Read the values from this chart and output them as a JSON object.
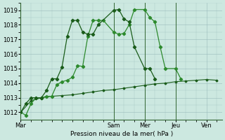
{
  "background_color": "#cce8e0",
  "grid_color": "#99bbbb",
  "line_color_dark": "#1a5c1a",
  "line_color_medium": "#2d8a2d",
  "x_ticks_labels": [
    "Mar",
    "Sam",
    "Mer",
    "Jeu",
    "Ven"
  ],
  "x_ticks_pos": [
    0,
    36,
    48,
    60,
    72
  ],
  "ylabel": "Pression niveau de la mer( hPa )",
  "ylim": [
    1011.5,
    1019.5
  ],
  "yticks": [
    1012,
    1013,
    1014,
    1015,
    1016,
    1017,
    1018,
    1019
  ],
  "xlim": [
    0,
    78
  ],
  "vlines_x": [
    36,
    48,
    60
  ],
  "series1_x": [
    0,
    2,
    4,
    6,
    8,
    10,
    12,
    14,
    16,
    18,
    20,
    22,
    24,
    26,
    28,
    30,
    32,
    36,
    38,
    40,
    42,
    44,
    48,
    50,
    52,
    54,
    56,
    60,
    62,
    64,
    66,
    68,
    72,
    74
  ],
  "series1_y": [
    1012.0,
    1011.8,
    1012.6,
    1013.0,
    1013.0,
    1013.1,
    1013.1,
    1013.9,
    1014.1,
    1014.2,
    1014.4,
    1015.2,
    1015.15,
    1017.2,
    1018.3,
    1018.3,
    1018.3,
    1017.5,
    1017.35,
    1017.4,
    1018.0,
    1019.05,
    1019.05,
    1018.5,
    1018.2,
    1016.5,
    1015.0,
    1015.0,
    1014.3,
    null,
    null,
    null,
    null,
    null
  ],
  "series2_x": [
    0,
    2,
    4,
    6,
    8,
    10,
    12,
    14,
    16,
    18,
    20,
    22,
    24,
    26,
    28,
    30,
    36,
    38,
    40,
    42,
    44,
    48,
    50,
    52,
    54,
    56,
    60,
    62,
    64
  ],
  "series2_y": [
    1012.0,
    1012.6,
    1013.0,
    1013.0,
    1013.0,
    1013.5,
    1014.3,
    1014.3,
    1015.1,
    1017.2,
    1018.3,
    1018.3,
    1017.5,
    1017.35,
    1017.35,
    1018.0,
    1019.0,
    1019.05,
    1018.4,
    1018.2,
    1016.5,
    1015.0,
    1015.0,
    1014.3,
    null,
    null,
    null,
    null,
    null
  ],
  "series3_x": [
    0,
    4,
    8,
    12,
    16,
    20,
    24,
    28,
    32,
    36,
    40,
    44,
    48,
    52,
    56,
    60,
    64,
    68,
    72,
    76
  ],
  "series3_y": [
    1012.0,
    1012.8,
    1013.0,
    1013.1,
    1013.15,
    1013.2,
    1013.3,
    1013.4,
    1013.5,
    1013.55,
    1013.65,
    1013.75,
    1013.85,
    1013.95,
    1014.0,
    1014.1,
    1014.15,
    1014.2,
    1014.25,
    1014.2
  ]
}
